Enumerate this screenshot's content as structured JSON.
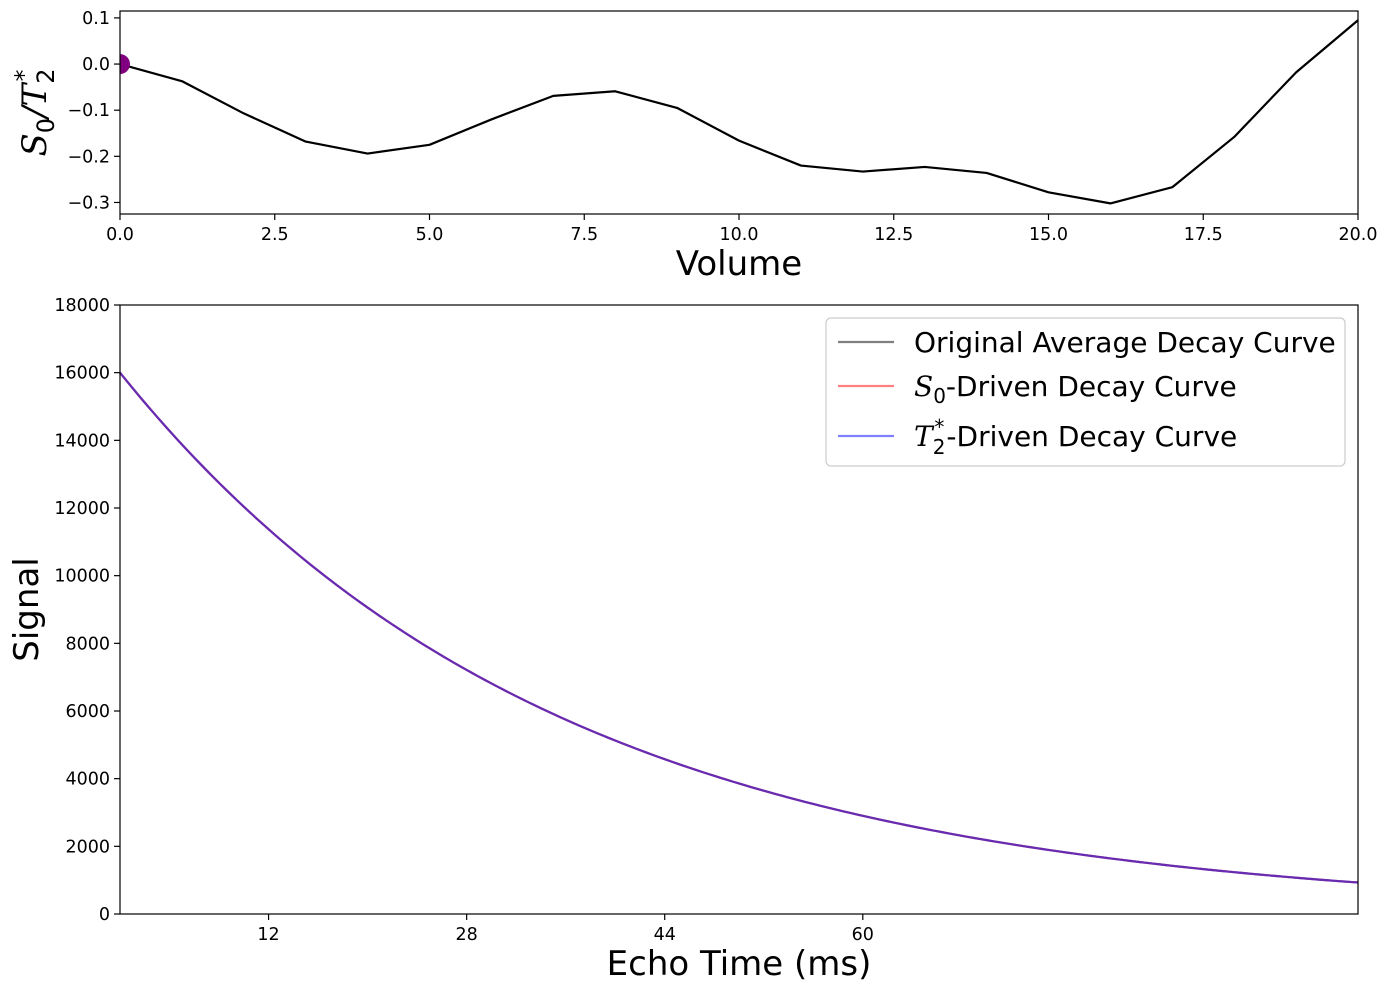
{
  "chart_data": [
    {
      "type": "line",
      "xlabel": "Volume",
      "ylabel": "S0/T2*",
      "ylabel_parts": {
        "main": "S",
        "sub": "0",
        "slash": "/",
        "main2": "T",
        "sub2": "2",
        "sup2": "*"
      },
      "xlim": [
        0,
        20
      ],
      "ylim": [
        -0.325,
        0.115
      ],
      "x_ticks": [
        "0.0",
        "2.5",
        "5.0",
        "7.5",
        "10.0",
        "12.5",
        "15.0",
        "17.5",
        "20.0"
      ],
      "x_tick_values": [
        0,
        2.5,
        5,
        7.5,
        10,
        12.5,
        15,
        17.5,
        20
      ],
      "y_ticks": [
        "0.1",
        "0.0",
        "−0.1",
        "−0.2",
        "−0.3"
      ],
      "y_tick_values": [
        0.1,
        0.0,
        -0.1,
        -0.2,
        -0.3
      ],
      "grid": false,
      "series": [
        {
          "color": "#000000",
          "x": [
            0,
            1,
            2,
            3,
            4,
            5,
            6,
            7,
            8,
            9,
            10,
            11,
            12,
            13,
            14,
            15,
            16,
            17,
            18,
            19,
            20
          ],
          "y": [
            0.0,
            -0.037,
            -0.107,
            -0.168,
            -0.194,
            -0.175,
            -0.12,
            -0.069,
            -0.059,
            -0.095,
            -0.166,
            -0.22,
            -0.233,
            -0.223,
            -0.236,
            -0.278,
            -0.302,
            -0.267,
            -0.158,
            -0.018,
            0.095
          ]
        }
      ],
      "marker": {
        "x": 0,
        "y": 0.0,
        "color": "#800080"
      }
    },
    {
      "type": "line",
      "xlabel": "Echo Time (ms)",
      "ylabel": "Signal",
      "xlim": [
        0,
        100
      ],
      "ylim": [
        0,
        18000
      ],
      "x_ticks": [
        "12",
        "28",
        "44",
        "60"
      ],
      "x_tick_values": [
        12,
        28,
        44,
        60
      ],
      "y_ticks": [
        "0",
        "2000",
        "4000",
        "6000",
        "8000",
        "10000",
        "12000",
        "14000",
        "16000",
        "18000"
      ],
      "y_tick_values": [
        0,
        2000,
        4000,
        6000,
        8000,
        10000,
        12000,
        14000,
        16000,
        18000
      ],
      "grid": false,
      "legend_placement": "top-right",
      "series": [
        {
          "name": "Original Average Decay Curve",
          "color": "#808080",
          "x": [
            0,
            12,
            28,
            44,
            60,
            80,
            100
          ],
          "y": [
            16000,
            11500,
            7750,
            4500,
            2850,
            1700,
            930
          ]
        },
        {
          "name": "S0-Driven Decay Curve",
          "color": "#ff8080",
          "x": [
            0,
            12,
            28,
            44,
            60,
            80,
            100
          ],
          "y": [
            16000,
            11500,
            7750,
            4500,
            2850,
            1700,
            930
          ]
        },
        {
          "name": "T2*-Driven Decay Curve",
          "color": "#8080ff",
          "x": [
            0,
            12,
            28,
            44,
            60,
            80,
            100
          ],
          "y": [
            16000,
            11500,
            7750,
            4500,
            2850,
            1700,
            930
          ]
        }
      ],
      "visible_curve_color": "#6a2ab0",
      "legend_entries": [
        {
          "prefix": "",
          "sub": "",
          "sup": "",
          "text": "Original Average Decay Curve",
          "color": "#808080"
        },
        {
          "prefix": "S",
          "sub": "0",
          "sup": "",
          "text": "-Driven Decay Curve",
          "color": "#ff8080"
        },
        {
          "prefix": "T",
          "sub": "2",
          "sup": "*",
          "text": "-Driven Decay Curve",
          "color": "#8080ff"
        }
      ]
    }
  ]
}
